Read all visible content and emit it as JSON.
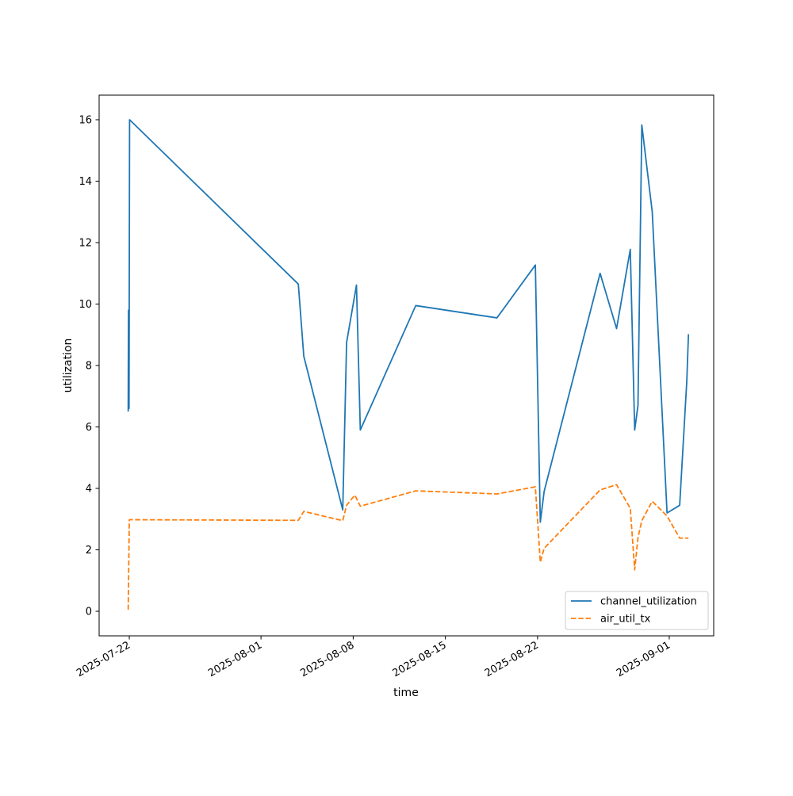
{
  "chart_data": {
    "type": "line",
    "title": "",
    "xlabel": "time",
    "ylabel": "utilization",
    "x_type": "date",
    "xlim": [
      "2025-07-19T17:00",
      "2025-09-04T09:00"
    ],
    "ylim": [
      -0.8,
      16.8
    ],
    "grid": false,
    "legend_position": "lower-right",
    "xticks": [
      "2025-07-22",
      "2025-08-01",
      "2025-08-08",
      "2025-08-15",
      "2025-08-22",
      "2025-09-01"
    ],
    "yticks": [
      0,
      2,
      4,
      6,
      8,
      10,
      12,
      14,
      16
    ],
    "series": [
      {
        "name": "channel_utilization",
        "color": "#1f77b4",
        "dash": "solid",
        "points": [
          {
            "x": "2025-07-21T22:00",
            "y": 6.5
          },
          {
            "x": "2025-07-21T22:30",
            "y": 9.8
          },
          {
            "x": "2025-07-21T23:30",
            "y": 6.6
          },
          {
            "x": "2025-07-22T00:30",
            "y": 16.0
          },
          {
            "x": "2025-08-03T20:00",
            "y": 10.65
          },
          {
            "x": "2025-08-04T06:00",
            "y": 8.3
          },
          {
            "x": "2025-08-07T05:00",
            "y": 3.3
          },
          {
            "x": "2025-08-07T12:00",
            "y": 8.75
          },
          {
            "x": "2025-08-08T06:00",
            "y": 10.62
          },
          {
            "x": "2025-08-08T13:00",
            "y": 5.9
          },
          {
            "x": "2025-08-12T18:00",
            "y": 9.95
          },
          {
            "x": "2025-08-18T22:00",
            "y": 9.55
          },
          {
            "x": "2025-08-21T20:00",
            "y": 11.27
          },
          {
            "x": "2025-08-22T05:00",
            "y": 2.9
          },
          {
            "x": "2025-08-22T12:00",
            "y": 3.9
          },
          {
            "x": "2025-08-26T18:00",
            "y": 11.0
          },
          {
            "x": "2025-08-28T00:00",
            "y": 9.2
          },
          {
            "x": "2025-08-29T01:00",
            "y": 11.78
          },
          {
            "x": "2025-08-29T09:00",
            "y": 5.9
          },
          {
            "x": "2025-08-29T15:00",
            "y": 6.7
          },
          {
            "x": "2025-08-29T22:00",
            "y": 15.83
          },
          {
            "x": "2025-08-30T17:00",
            "y": 13.0
          },
          {
            "x": "2025-08-31T20:00",
            "y": 3.2
          },
          {
            "x": "2025-09-01T19:00",
            "y": 3.45
          },
          {
            "x": "2025-09-02T08:00",
            "y": 7.5
          },
          {
            "x": "2025-09-02T11:00",
            "y": 9.02
          }
        ]
      },
      {
        "name": "air_util_tx",
        "color": "#ff7f0e",
        "dash": "dashed",
        "points": [
          {
            "x": "2025-07-21T22:00",
            "y": 0.05
          },
          {
            "x": "2025-07-22T00:00",
            "y": 2.98
          },
          {
            "x": "2025-08-03T20:00",
            "y": 2.96
          },
          {
            "x": "2025-08-04T06:00",
            "y": 3.25
          },
          {
            "x": "2025-08-07T05:00",
            "y": 2.95
          },
          {
            "x": "2025-08-07T12:00",
            "y": 3.45
          },
          {
            "x": "2025-08-08T03:00",
            "y": 3.78
          },
          {
            "x": "2025-08-08T13:00",
            "y": 3.42
          },
          {
            "x": "2025-08-12T18:00",
            "y": 3.92
          },
          {
            "x": "2025-08-18T22:00",
            "y": 3.82
          },
          {
            "x": "2025-08-21T20:00",
            "y": 4.05
          },
          {
            "x": "2025-08-22T05:00",
            "y": 1.6
          },
          {
            "x": "2025-08-22T12:00",
            "y": 2.05
          },
          {
            "x": "2025-08-26T18:00",
            "y": 3.95
          },
          {
            "x": "2025-08-28T00:00",
            "y": 4.12
          },
          {
            "x": "2025-08-29T01:00",
            "y": 3.35
          },
          {
            "x": "2025-08-29T09:00",
            "y": 1.35
          },
          {
            "x": "2025-08-29T15:00",
            "y": 2.4
          },
          {
            "x": "2025-08-29T22:00",
            "y": 2.95
          },
          {
            "x": "2025-08-30T17:00",
            "y": 3.58
          },
          {
            "x": "2025-08-31T20:00",
            "y": 3.1
          },
          {
            "x": "2025-09-01T19:00",
            "y": 2.38
          },
          {
            "x": "2025-09-02T11:00",
            "y": 2.38
          }
        ]
      }
    ]
  }
}
